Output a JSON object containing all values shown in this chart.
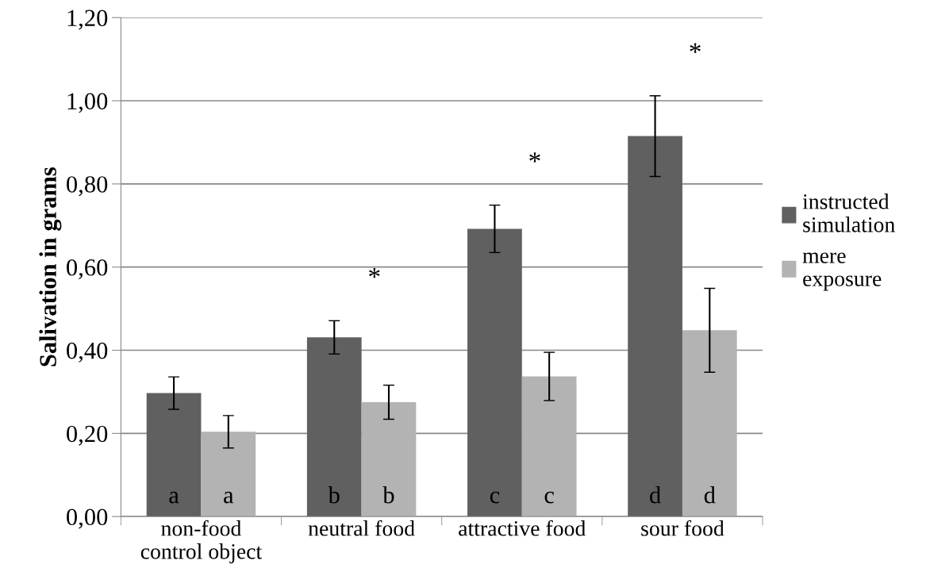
{
  "chart_data": {
    "type": "bar",
    "ylabel": "Salivation in grams",
    "categories": [
      "non-food\ncontrol object",
      "neutral food",
      "attractive food",
      "sour food"
    ],
    "series": [
      {
        "name": "instructed simulation",
        "color": "#606060",
        "values": [
          0.297,
          0.431,
          0.692,
          0.915
        ],
        "errors": [
          0.039,
          0.04,
          0.057,
          0.097
        ],
        "value_labels": [
          "a",
          "b",
          "c",
          "d"
        ]
      },
      {
        "name": "mere exposure",
        "color": "#b3b3b3",
        "values": [
          0.204,
          0.275,
          0.337,
          0.448
        ],
        "errors": [
          0.039,
          0.041,
          0.058,
          0.101
        ],
        "value_labels": [
          "a",
          "b",
          "c",
          "d"
        ]
      }
    ],
    "ylim": [
      0,
      1.2
    ],
    "yticks": [
      {
        "value": 0,
        "label": "0,00"
      },
      {
        "value": 0.2,
        "label": "0,20"
      },
      {
        "value": 0.4,
        "label": "0,40"
      },
      {
        "value": 0.6,
        "label": "0,60"
      },
      {
        "value": 0.8,
        "label": "0,80"
      },
      {
        "value": 1.0,
        "label": "1,00"
      },
      {
        "value": 1.2,
        "label": "1,20"
      }
    ],
    "annotations": [
      "*",
      "*",
      "*"
    ],
    "grid": "y",
    "legend": "right"
  }
}
